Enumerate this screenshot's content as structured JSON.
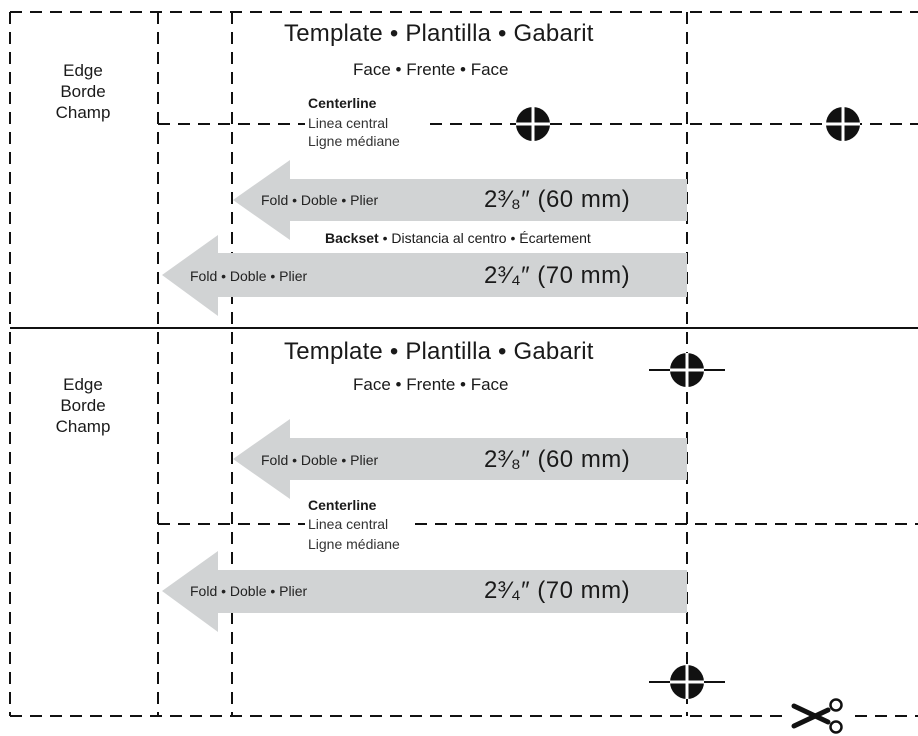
{
  "colors": {
    "line": "#111111",
    "arrow": "#d1d3d4",
    "background": "#ffffff"
  },
  "templates": [
    {
      "edge_label": "Edge\nBorde\nChamp",
      "title": "Template • Plantilla • Gabarit",
      "subtitle": "Face • Frente • Face",
      "centerline": {
        "label": "Centerline",
        "es": "Linea central",
        "fr": "Ligne médiane"
      },
      "arrows": [
        {
          "label": "Fold • Doble • Plier",
          "measure": "2³⁄₈″ (60 mm)"
        },
        {
          "label": "Fold • Doble • Plier",
          "measure": "2³⁄₄″ (70 mm)"
        }
      ],
      "backset": {
        "label": "Backset",
        "rest": " • Distancia al centro • Écartement"
      }
    },
    {
      "edge_label": "Edge\nBorde\nChamp",
      "title": "Template • Plantilla • Gabarit",
      "subtitle": "Face • Frente • Face",
      "centerline": {
        "label": "Centerline",
        "es": "Linea central",
        "fr": "Ligne médiane"
      },
      "arrows": [
        {
          "label": "Fold • Doble • Plier",
          "measure": "2³⁄₈″ (60 mm)"
        },
        {
          "label": "Fold • Doble • Plier",
          "measure": "2³⁄₄″ (70 mm)"
        }
      ]
    }
  ],
  "icons": {
    "target": "crosshair-target-icon",
    "cut": "scissors-icon"
  }
}
